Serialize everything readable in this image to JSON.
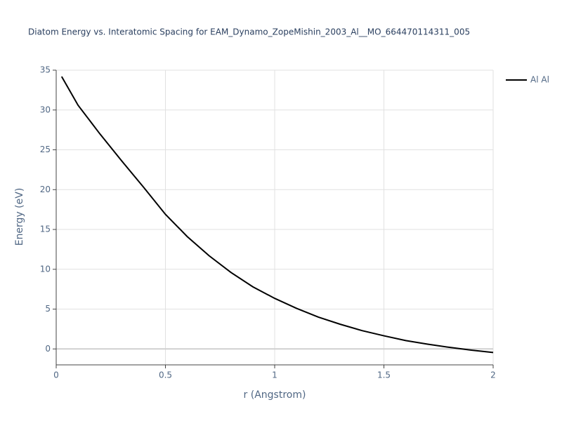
{
  "chart_data": {
    "type": "line",
    "title": "Diatom Energy vs. Interatomic Spacing for EAM_Dynamo_ZopeMishin_2003_Al__MO_664470114311_005",
    "x_label": "r (Angstrom)",
    "y_label": "Energy (eV)",
    "x": [
      0.025,
      0.1,
      0.2,
      0.3,
      0.4,
      0.5,
      0.6,
      0.7,
      0.8,
      0.9,
      1.0,
      1.1,
      1.2,
      1.3,
      1.4,
      1.5,
      1.6,
      1.7,
      1.8,
      1.9,
      2.0
    ],
    "series": [
      {
        "name": "Al Al",
        "color": "#000000",
        "values": [
          34.2,
          30.6,
          27.0,
          23.6,
          20.3,
          16.9,
          14.1,
          11.7,
          9.6,
          7.8,
          6.35,
          5.1,
          4.0,
          3.1,
          2.3,
          1.65,
          1.05,
          0.6,
          0.2,
          -0.15,
          -0.45
        ]
      }
    ],
    "xlim": [
      0,
      2
    ],
    "xticks": [
      0,
      0.5,
      1,
      1.5,
      2
    ],
    "ylim": [
      -2,
      35
    ],
    "yticks": [
      0,
      5,
      10,
      15,
      20,
      25,
      30,
      35
    ],
    "grid": true,
    "legend": "right"
  }
}
